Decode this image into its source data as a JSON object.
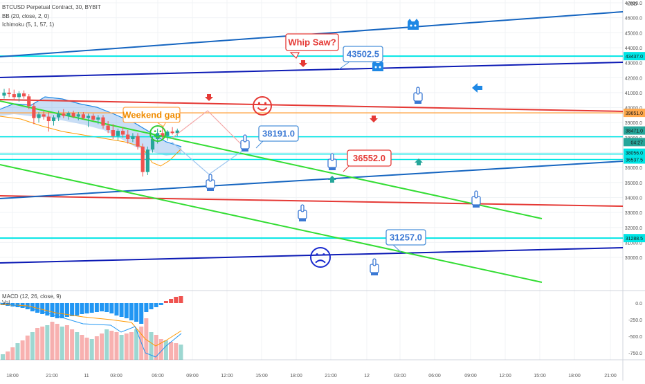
{
  "header": {
    "symbol_line": "BTCUSD Perpetual Contract, 30, BYBIT",
    "bb_line": "BB (20, close, 2, 0)",
    "ichimoku_line": "Ichimoku (5, 1, 57, 1)"
  },
  "macd": {
    "label": "MACD (12, 26, close, 9)",
    "vol_label": "Vol",
    "axis_ticks": [
      "0.0",
      "-250.0",
      "-500.0",
      "-750.0"
    ]
  },
  "colors": {
    "up": "#26a69a",
    "down": "#ef5350",
    "support": "#00e5e5",
    "blue_line": "#1565c0",
    "navy_line": "#0d1bb5",
    "red_line": "#e53935",
    "green_line": "#33dd33",
    "orange_line": "#ffa94d",
    "callout": "#4a90d9"
  },
  "chart_data": {
    "type": "candlestick",
    "currency": "USD",
    "price_axis_ticks": [
      "47000.0",
      "46000.0",
      "45000.0",
      "44000.0",
      "43000.0",
      "42000.0",
      "41000.0",
      "40000.0",
      "39000.0",
      "38000.0",
      "37000.0",
      "36000.0",
      "35000.0",
      "34000.0",
      "33000.0",
      "32000.0",
      "31000.0",
      "30000.0"
    ],
    "price_labels": [
      {
        "text": "43437.0",
        "price": 43437,
        "color": "#00e5e5"
      },
      {
        "text": "39651.0",
        "price": 39651,
        "color": "#ffa94d"
      },
      {
        "text": "38471.0",
        "price": 38471,
        "color": "#26a69a"
      },
      {
        "text": "04:27",
        "price": 37700,
        "color": "#26a69a"
      },
      {
        "text": "38056.0",
        "price": 36990,
        "color": "#00e5e5"
      },
      {
        "text": "36537.5",
        "price": 36537,
        "color": "#00e5e5"
      },
      {
        "text": "31288.5",
        "price": 31288,
        "color": "#00e5e5"
      }
    ],
    "time_axis_ticks": [
      "18:00",
      "21:00",
      "11",
      "03:00",
      "06:00",
      "09:00",
      "12:00",
      "15:00",
      "18:00",
      "21:00",
      "12",
      "03:00",
      "06:00",
      "09:00",
      "12:00",
      "15:00",
      "18:00",
      "21:00"
    ],
    "candles": [
      {
        "o": 40800,
        "h": 41250,
        "l": 40600,
        "c": 41000
      },
      {
        "o": 41000,
        "h": 41300,
        "l": 40700,
        "c": 40900
      },
      {
        "o": 40900,
        "h": 41200,
        "l": 40500,
        "c": 40700
      },
      {
        "o": 40700,
        "h": 41100,
        "l": 40400,
        "c": 40950
      },
      {
        "o": 40950,
        "h": 41150,
        "l": 40600,
        "c": 40750
      },
      {
        "o": 40750,
        "h": 40900,
        "l": 39900,
        "c": 40100
      },
      {
        "o": 40100,
        "h": 40300,
        "l": 38900,
        "c": 39300
      },
      {
        "o": 39300,
        "h": 39700,
        "l": 39000,
        "c": 39550
      },
      {
        "o": 39550,
        "h": 39800,
        "l": 39200,
        "c": 39400
      },
      {
        "o": 39400,
        "h": 39700,
        "l": 38400,
        "c": 39100
      },
      {
        "o": 39100,
        "h": 39500,
        "l": 38800,
        "c": 39350
      },
      {
        "o": 39350,
        "h": 39800,
        "l": 39100,
        "c": 39600
      },
      {
        "o": 39600,
        "h": 39900,
        "l": 39300,
        "c": 39450
      },
      {
        "o": 39450,
        "h": 39750,
        "l": 39200,
        "c": 39650
      },
      {
        "o": 39650,
        "h": 39800,
        "l": 39300,
        "c": 39400
      },
      {
        "o": 39400,
        "h": 39700,
        "l": 39150,
        "c": 39550
      },
      {
        "o": 39550,
        "h": 39700,
        "l": 39200,
        "c": 39300
      },
      {
        "o": 39300,
        "h": 39600,
        "l": 38700,
        "c": 39450
      },
      {
        "o": 39450,
        "h": 39600,
        "l": 39100,
        "c": 39200
      },
      {
        "o": 39200,
        "h": 39500,
        "l": 38900,
        "c": 39350
      },
      {
        "o": 39350,
        "h": 39500,
        "l": 38600,
        "c": 38800
      },
      {
        "o": 38800,
        "h": 39100,
        "l": 38300,
        "c": 38500
      },
      {
        "o": 38500,
        "h": 38900,
        "l": 37900,
        "c": 38100
      },
      {
        "o": 38100,
        "h": 38600,
        "l": 37800,
        "c": 38450
      },
      {
        "o": 38450,
        "h": 38700,
        "l": 38000,
        "c": 38200
      },
      {
        "o": 38200,
        "h": 38500,
        "l": 37600,
        "c": 37900
      },
      {
        "o": 37900,
        "h": 38300,
        "l": 37700,
        "c": 38100
      },
      {
        "o": 38100,
        "h": 38300,
        "l": 37200,
        "c": 37400
      },
      {
        "o": 37400,
        "h": 37600,
        "l": 35400,
        "c": 35700
      },
      {
        "o": 35700,
        "h": 37400,
        "l": 35500,
        "c": 37200
      },
      {
        "o": 37200,
        "h": 38100,
        "l": 37000,
        "c": 37900
      },
      {
        "o": 37900,
        "h": 38600,
        "l": 37600,
        "c": 38300
      },
      {
        "o": 38300,
        "h": 38900,
        "l": 37900,
        "c": 38100
      },
      {
        "o": 38100,
        "h": 38500,
        "l": 37800,
        "c": 38400
      },
      {
        "o": 38400,
        "h": 38700,
        "l": 38200,
        "c": 38300
      },
      {
        "o": 38300,
        "h": 38600,
        "l": 38100,
        "c": 38471
      }
    ],
    "annotations": [
      {
        "text": "Whip Saw?",
        "color": "#e53935"
      },
      {
        "text": "43502.5",
        "color": "#4a90d9"
      },
      {
        "text": "Weekend gap",
        "color": "#ffa94d"
      },
      {
        "text": "38191.0",
        "color": "#4a90d9"
      },
      {
        "text": "36552.0",
        "color": "#e53935"
      },
      {
        "text": "31257.0",
        "color": "#4a90d9"
      }
    ],
    "horizontal_levels": [
      43437,
      39651,
      38056,
      36537,
      31288
    ],
    "ylim": [
      29000,
      47500
    ]
  }
}
